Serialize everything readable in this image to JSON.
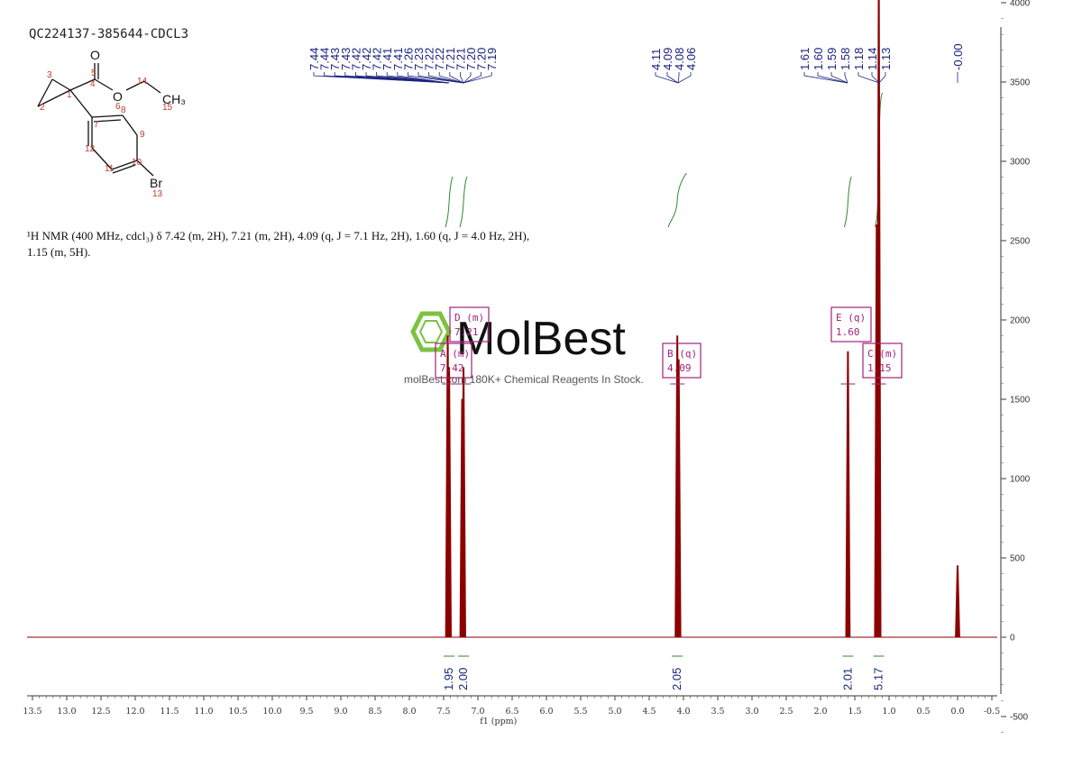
{
  "sample_id": "QC224137-385644-CDCL3",
  "nmr_summary": "¹H NMR (400 MHz, cdcl₃) δ 7.42 (m, 2H), 7.21 (m, 2H), 4.09 (q, J = 7.1 Hz, 2H), 1.60 (q, J = 4.0 Hz, 2H), 1.15 (m, 5H).",
  "watermark": {
    "brand": "MolBest",
    "tagline": "molBest.com 180K+ Chemical Reagents In Stock.",
    "color": "#7dc242"
  },
  "structure": {
    "atoms": [
      "O",
      "O",
      "CH3",
      "Br"
    ],
    "numbers": [
      "1",
      "2",
      "3",
      "4",
      "5",
      "6",
      "7",
      "8",
      "9",
      "10",
      "11",
      "12",
      "13",
      "14",
      "15"
    ]
  },
  "chart_data": {
    "type": "line",
    "xlabel": "f1 (ppm)",
    "xlim": [
      13.5,
      -0.5
    ],
    "ylim": [
      -700,
      7700
    ],
    "x_ticks": [
      "13.5",
      "13.0",
      "12.5",
      "12.0",
      "11.5",
      "11.0",
      "10.5",
      "10.0",
      "9.5",
      "9.0",
      "8.5",
      "8.0",
      "7.5",
      "7.0",
      "6.5",
      "6.0",
      "5.5",
      "5.0",
      "4.5",
      "4.0",
      "3.5",
      "3.0",
      "2.5",
      "2.0",
      "1.5",
      "1.0",
      "0.5",
      "0.0",
      "-0.5"
    ],
    "y_ticks": [
      "7500",
      "7000",
      "6500",
      "6000",
      "5500",
      "5000",
      "4500",
      "4000",
      "3500",
      "3000",
      "2500",
      "2000",
      "1500",
      "1000",
      "500",
      "0",
      "-500"
    ],
    "colors": {
      "spectrum": "#8b0000",
      "integral": "#2e8b2e",
      "peak_label": "#1a237e",
      "multiplet": "#a0227a"
    },
    "peaks": [
      {
        "ppm": 7.44,
        "height": 1900
      },
      {
        "ppm": 7.42,
        "height": 1700
      },
      {
        "ppm": 7.21,
        "height": 1700
      },
      {
        "ppm": 7.23,
        "height": 1500
      },
      {
        "ppm": 4.09,
        "height": 1900
      },
      {
        "ppm": 4.07,
        "height": 1750
      },
      {
        "ppm": 1.6,
        "height": 1800
      },
      {
        "ppm": 1.15,
        "height": 4200
      },
      {
        "ppm": 1.18,
        "height": 2600
      },
      {
        "ppm": 0.0,
        "height": 450
      }
    ],
    "peak_labels": [
      {
        "group": 1,
        "values": [
          "7.44",
          "7.44",
          "7.43",
          "7.43",
          "7.42",
          "7.42",
          "7.42",
          "7.41",
          "7.41",
          "7.26",
          "7.23",
          "7.22",
          "7.22",
          "7.21",
          "7.21",
          "7.20",
          "7.20",
          "7.19"
        ]
      },
      {
        "group": 2,
        "values": [
          "4.11",
          "4.09",
          "4.08",
          "4.06"
        ]
      },
      {
        "group": 3,
        "values": [
          "1.61",
          "1.60",
          "1.59",
          "1.58",
          "1.18",
          "1.14",
          "1.13"
        ]
      },
      {
        "group": 4,
        "values": [
          "-0.00"
        ]
      }
    ],
    "integrals": [
      {
        "ppm": 7.42,
        "value": "1.95"
      },
      {
        "ppm": 7.21,
        "value": "2.00"
      },
      {
        "ppm": 4.09,
        "value": "2.05"
      },
      {
        "ppm": 1.6,
        "value": "2.01"
      },
      {
        "ppm": 1.15,
        "value": "5.17"
      }
    ],
    "multiplets": [
      {
        "id": "A (m)",
        "value": "7.42"
      },
      {
        "id": "D (m)",
        "value": "7.21"
      },
      {
        "id": "B (q)",
        "value": "4.09"
      },
      {
        "id": "E (q)",
        "value": "1.60"
      },
      {
        "id": "C (m)",
        "value": "1.15"
      }
    ]
  }
}
